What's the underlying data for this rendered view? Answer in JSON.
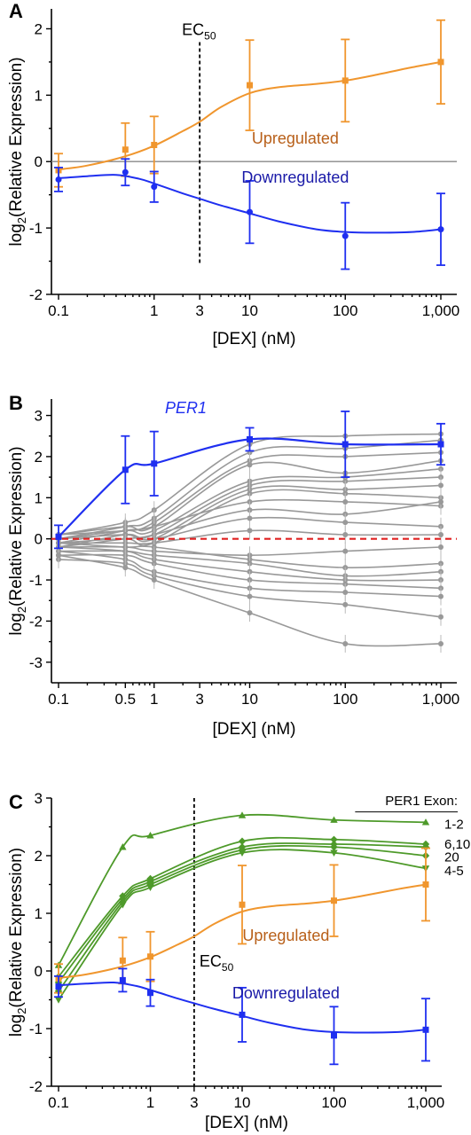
{
  "chart_data": [
    {
      "panel": "A",
      "type": "line",
      "x_scale": "log",
      "xlim": [
        0.1,
        1000
      ],
      "ylim": [
        -2,
        2.3
      ],
      "x_ticks": [
        0.1,
        1,
        3,
        10,
        100,
        1000
      ],
      "x_tick_labels": [
        "0.1",
        "1",
        "3",
        "10",
        "100",
        "1,000"
      ],
      "y_ticks": [
        -2,
        -1,
        0,
        1,
        2
      ],
      "y_tick_labels": [
        "-2",
        "-1",
        "0",
        "1",
        "2"
      ],
      "xlabel": "[DEX] (nM)",
      "ylabel_main": "log",
      "ylabel_sub": "2",
      "ylabel_rest": "(Relative Expression)",
      "zero_line": true,
      "ec50": {
        "x": 3,
        "y_top": 1.8,
        "y_bottom": -1.55,
        "label": "EC",
        "sub": "50"
      },
      "series": [
        {
          "name": "Upregulated",
          "color": "#f0962e",
          "label_color": "#b8601a",
          "marker": "square",
          "x": [
            0.1,
            0.5,
            1,
            10,
            100,
            1000
          ],
          "y": [
            -0.13,
            0.18,
            0.25,
            1.15,
            1.22,
            1.5
          ],
          "err": [
            0.25,
            0.4,
            0.43,
            0.68,
            0.62,
            0.63
          ],
          "curve_x": [
            0.1,
            0.2,
            0.5,
            1,
            2,
            3,
            5,
            10,
            20,
            50,
            100,
            200,
            500,
            1000
          ],
          "curve_y": [
            -0.12,
            -0.06,
            0.08,
            0.24,
            0.46,
            0.6,
            0.82,
            1.03,
            1.12,
            1.17,
            1.22,
            1.3,
            1.42,
            1.5
          ]
        },
        {
          "name": "Downregulated",
          "color": "#1f2ff0",
          "label_color": "#1a1aa8",
          "marker": "circle",
          "x": [
            0.1,
            0.5,
            1,
            10,
            100,
            1000
          ],
          "y": [
            -0.27,
            -0.16,
            -0.38,
            -0.76,
            -1.12,
            -1.02
          ],
          "err": [
            0.18,
            0.2,
            0.23,
            0.47,
            0.5,
            0.54
          ],
          "curve_x": [
            0.1,
            0.2,
            0.4,
            0.7,
            1,
            2,
            3,
            5,
            10,
            20,
            50,
            100,
            200,
            500,
            1000
          ],
          "curve_y": [
            -0.25,
            -0.22,
            -0.2,
            -0.26,
            -0.33,
            -0.48,
            -0.56,
            -0.66,
            -0.78,
            -0.9,
            -1.02,
            -1.06,
            -1.07,
            -1.06,
            -1.02
          ]
        }
      ],
      "annotations": [
        {
          "text": "Upregulated",
          "x": 30,
          "y": 0.27,
          "color": "#b8601a"
        },
        {
          "text": "Downregulated",
          "x": 30,
          "y": -0.32,
          "color": "#1a1aa8"
        }
      ]
    },
    {
      "panel": "B",
      "type": "line",
      "x_scale": "log",
      "xlim": [
        0.1,
        1000
      ],
      "ylim": [
        -3.5,
        3.4
      ],
      "x_ticks": [
        0.1,
        0.5,
        1,
        3,
        10,
        100,
        1000
      ],
      "x_tick_labels": [
        "0.1",
        "0.5",
        "1",
        "3",
        "10",
        "100",
        "1,000"
      ],
      "y_ticks": [
        -3,
        -2,
        -1,
        0,
        1,
        2,
        3
      ],
      "y_tick_labels": [
        "-3",
        "-2",
        "-1",
        "0",
        "1",
        "2",
        "3"
      ],
      "xlabel": "[DEX] (nM)",
      "ylabel_main": "log",
      "ylabel_sub": "2",
      "ylabel_rest": "(Relative Expression)",
      "zero_line_color": "#e02020",
      "x_points": [
        0.1,
        0.5,
        1,
        10,
        100,
        1000
      ],
      "highlight": {
        "name": "PER1",
        "color": "#1f2ff0",
        "y": [
          0.05,
          1.68,
          1.83,
          2.42,
          2.3,
          2.3
        ],
        "err": [
          0.28,
          0.82,
          0.78,
          0.28,
          0.8,
          0.5
        ]
      },
      "gray_color": "#999999",
      "gray_series": [
        [
          0.1,
          0.4,
          0.7,
          2.3,
          2.5,
          2.55
        ],
        [
          0.0,
          0.3,
          0.5,
          2.1,
          2.2,
          2.4
        ],
        [
          -0.1,
          0.2,
          0.4,
          1.9,
          2.0,
          2.1
        ],
        [
          0.1,
          0.3,
          0.3,
          1.8,
          1.6,
          1.9
        ],
        [
          0.0,
          0.2,
          0.2,
          1.4,
          1.5,
          1.7
        ],
        [
          -0.2,
          0.1,
          0.1,
          1.3,
          1.4,
          1.5
        ],
        [
          0.0,
          0.1,
          0.0,
          1.2,
          1.2,
          1.3
        ],
        [
          -0.1,
          0.0,
          -0.1,
          1.1,
          1.1,
          1.0
        ],
        [
          0.1,
          0.2,
          0.3,
          0.9,
          0.9,
          0.8
        ],
        [
          -0.2,
          0.0,
          0.1,
          0.7,
          0.6,
          0.9
        ],
        [
          0.0,
          0.1,
          0.0,
          0.5,
          0.4,
          0.3
        ],
        [
          -0.1,
          -0.1,
          -0.1,
          0.2,
          0.1,
          0.1
        ],
        [
          -0.2,
          -0.2,
          -0.3,
          -0.4,
          -0.3,
          -0.2
        ],
        [
          -0.1,
          -0.2,
          -0.2,
          -0.5,
          -0.7,
          -0.6
        ],
        [
          -0.3,
          -0.3,
          -0.4,
          -0.6,
          -0.9,
          -0.8
        ],
        [
          -0.2,
          -0.3,
          -0.5,
          -0.8,
          -1.0,
          -1.0
        ],
        [
          -0.4,
          -0.4,
          -0.6,
          -1.0,
          -1.1,
          -1.2
        ],
        [
          -0.3,
          -0.5,
          -0.8,
          -1.2,
          -1.3,
          -1.4
        ],
        [
          -0.5,
          -0.6,
          -0.9,
          -1.4,
          -1.6,
          -1.9
        ],
        [
          -0.4,
          -0.7,
          -1.0,
          -1.8,
          -2.55,
          -2.55
        ]
      ]
    },
    {
      "panel": "C",
      "type": "line",
      "x_scale": "log",
      "xlim": [
        0.1,
        1000
      ],
      "ylim": [
        -2,
        3
      ],
      "x_ticks": [
        0.1,
        1,
        3,
        10,
        100,
        1000
      ],
      "x_tick_labels": [
        "0.1",
        "1",
        "3",
        "10",
        "100",
        "1,000"
      ],
      "y_ticks": [
        -2,
        -1,
        0,
        1,
        2,
        3
      ],
      "y_tick_labels": [
        "-2",
        "-1",
        "0",
        "1",
        "2",
        "3"
      ],
      "xlabel": "[DEX] (nM)",
      "ylabel_main": "log",
      "ylabel_sub": "2",
      "ylabel_rest": "(Relative Expression)",
      "ec50": {
        "x": 3,
        "y_top": 3.0,
        "y_bottom": -2.0,
        "label": "EC",
        "sub": "50"
      },
      "exon_header": "PER1 Exon:",
      "exon_labels": [
        "1-2",
        "6,10",
        "20",
        "4-5"
      ],
      "green_color": "#4e9a2a",
      "green_x": [
        0.1,
        0.5,
        1,
        10,
        100,
        1000
      ],
      "green_series": [
        {
          "label": "1-2",
          "marker": "triangle-up",
          "y": [
            0.1,
            2.15,
            2.35,
            2.7,
            2.62,
            2.58
          ]
        },
        {
          "label": "6,10",
          "marker": "diamond",
          "y": [
            -0.1,
            1.3,
            1.6,
            2.25,
            2.28,
            2.2
          ]
        },
        {
          "label": "20",
          "marker": "diamond",
          "y": [
            -0.2,
            1.25,
            1.55,
            2.15,
            2.2,
            2.15
          ]
        },
        {
          "label": "4-5",
          "marker": "triangle-down",
          "y": [
            -0.5,
            1.15,
            1.45,
            2.05,
            2.05,
            1.78
          ]
        },
        {
          "label": "",
          "marker": "diamond",
          "y": [
            -0.35,
            1.2,
            1.5,
            2.1,
            2.15,
            2.0
          ]
        }
      ],
      "series": [
        {
          "name": "Upregulated",
          "color": "#f0962e",
          "label_color": "#b8601a",
          "marker": "square",
          "x": [
            0.1,
            0.5,
            1,
            10,
            100,
            1000
          ],
          "y": [
            -0.13,
            0.18,
            0.25,
            1.15,
            1.22,
            1.5
          ],
          "err": [
            0.25,
            0.4,
            0.43,
            0.68,
            0.62,
            0.63
          ],
          "curve_x": [
            0.1,
            0.2,
            0.5,
            1,
            2,
            3,
            5,
            10,
            20,
            50,
            100,
            200,
            500,
            1000
          ],
          "curve_y": [
            -0.12,
            -0.06,
            0.08,
            0.24,
            0.46,
            0.6,
            0.82,
            1.03,
            1.12,
            1.17,
            1.22,
            1.3,
            1.42,
            1.5
          ]
        },
        {
          "name": "Downregulated",
          "color": "#1f2ff0",
          "label_color": "#1a1aa8",
          "marker": "square",
          "x": [
            0.1,
            0.5,
            1,
            10,
            100,
            1000
          ],
          "y": [
            -0.27,
            -0.16,
            -0.38,
            -0.76,
            -1.12,
            -1.02
          ],
          "err": [
            0.18,
            0.2,
            0.23,
            0.47,
            0.5,
            0.54
          ],
          "curve_x": [
            0.1,
            0.2,
            0.4,
            0.7,
            1,
            2,
            3,
            5,
            10,
            20,
            50,
            100,
            200,
            500,
            1000
          ],
          "curve_y": [
            -0.25,
            -0.22,
            -0.2,
            -0.26,
            -0.33,
            -0.48,
            -0.56,
            -0.66,
            -0.78,
            -0.9,
            -1.02,
            -1.06,
            -1.07,
            -1.06,
            -1.02
          ]
        }
      ],
      "annotations": [
        {
          "text": "Upregulated",
          "x": 30,
          "y": 0.52,
          "color": "#b8601a"
        },
        {
          "text": "Downregulated",
          "x": 30,
          "y": -0.48,
          "color": "#1a1aa8"
        }
      ]
    }
  ]
}
